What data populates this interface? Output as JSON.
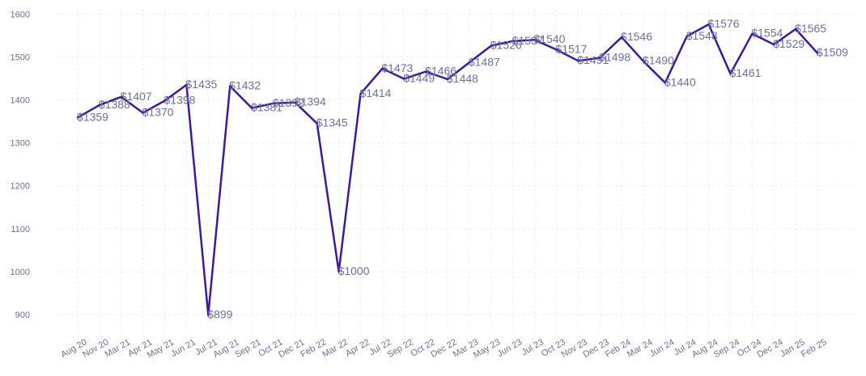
{
  "chart_data": {
    "type": "line",
    "title": "",
    "xlabel": "",
    "ylabel": "",
    "ylim": [
      870,
      1610
    ],
    "yticks": [
      900,
      1000,
      1100,
      1200,
      1300,
      1400,
      1500,
      1600
    ],
    "grid": true,
    "line_color": "#3f189b",
    "label_color": "#6b6fa0",
    "grid_color": "#eeeeee",
    "categories": [
      "Aug 20",
      "Nov 20",
      "Mar 21",
      "Apr 21",
      "May 21",
      "Jun 21",
      "Jul 21",
      "Aug 21",
      "Sep 21",
      "Oct 21",
      "Dec 21",
      "Feb 22",
      "Mar 22",
      "Apr 22",
      "Jul 22",
      "Sep 22",
      "Oct 22",
      "Dec 22",
      "Mar 23",
      "May 23",
      "Jun 23",
      "Jul 23",
      "Oct 23",
      "Nov 23",
      "Dec 23",
      "Feb 24",
      "Mar 24",
      "Jun 24",
      "Jul 24",
      "Aug 24",
      "Sep 24",
      "Oct 24",
      "Dec 24",
      "Jan 25",
      "Feb 25"
    ],
    "values": [
      1359,
      1388,
      1407,
      1370,
      1398,
      1435,
      899,
      1432,
      1381,
      1392,
      1394,
      1345,
      1000,
      1414,
      1473,
      1449,
      1466,
      1448,
      1487,
      1526,
      1537,
      1540,
      1517,
      1491,
      1498,
      1546,
      1490,
      1440,
      1548,
      1576,
      1461,
      1554,
      1529,
      1565,
      1509
    ],
    "data_labels": [
      "$1359",
      "$1388",
      "$1407",
      "$1370",
      "$1398",
      "$1435",
      "$899",
      "$1432",
      "$1381",
      "$1392",
      "$1394",
      "$1345",
      "$1000",
      "$1414",
      "$1473",
      "$1449",
      "$1466",
      "$1448",
      "$1487",
      "$1526",
      "$1537",
      "$1540",
      "$1517",
      "$1491",
      "$1498",
      "$1546",
      "$1490",
      "$1440",
      "$1548",
      "$1576",
      "$1461",
      "$1554",
      "$1529",
      "$1565",
      "$1509"
    ]
  }
}
